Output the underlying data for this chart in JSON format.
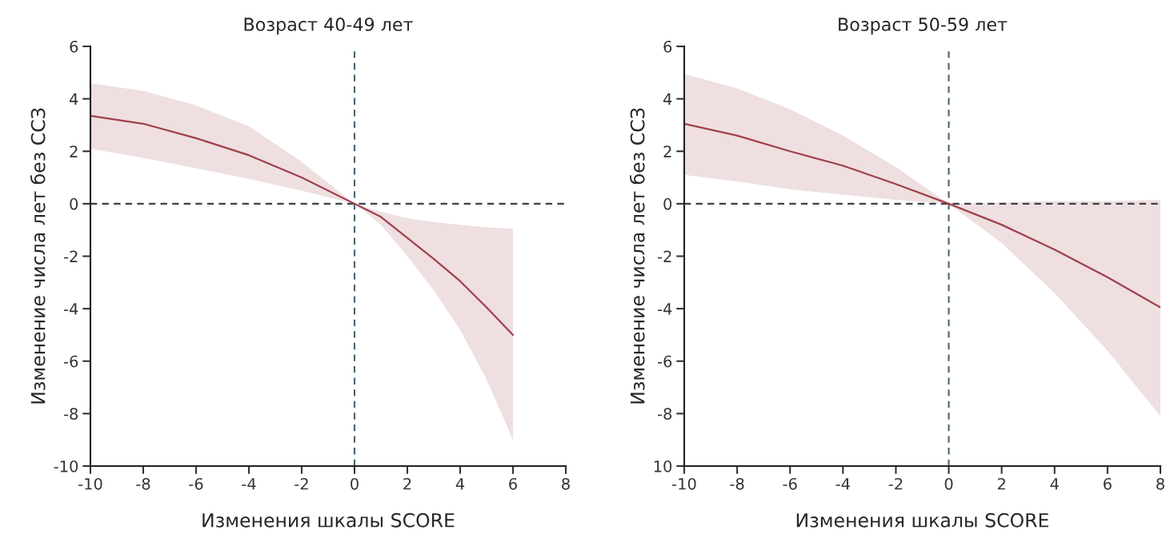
{
  "chart_data": [
    {
      "type": "line",
      "title": "Возраст 40-49 лет",
      "xlabel": "Изменения шкалы SCORE",
      "ylabel": "Изменение числа лет без ССЗ",
      "xlim": [
        -10,
        8
      ],
      "xticks": [
        -10,
        -8,
        -6,
        -4,
        -2,
        0,
        2,
        4,
        6,
        8
      ],
      "ylim": [
        -10,
        6
      ],
      "yticks": [
        -10,
        -8,
        -6,
        -4,
        -2,
        0,
        2,
        4,
        6
      ],
      "grid": false,
      "line_style": "solid",
      "series": [
        {
          "color": "#a0404a",
          "x": [
            -10,
            -8,
            -6,
            -4,
            -2,
            0,
            1,
            2,
            3,
            4,
            5,
            6
          ],
          "values": [
            3.35,
            3.05,
            2.5,
            1.85,
            1.0,
            0,
            -0.5,
            -1.3,
            -2.1,
            -2.95,
            -3.95,
            -5.0
          ],
          "lower": [
            2.1,
            1.75,
            1.35,
            0.95,
            0.5,
            0,
            -0.8,
            -2.0,
            -3.3,
            -4.8,
            -6.7,
            -9.0
          ],
          "upper": [
            4.6,
            4.3,
            3.75,
            2.95,
            1.6,
            0,
            -0.3,
            -0.55,
            -0.7,
            -0.8,
            -0.9,
            -0.95
          ]
        }
      ],
      "ref_lines": [
        {
          "axis": "y",
          "value": 0,
          "color": "#3a4248",
          "line_style": "dashed"
        },
        {
          "axis": "x",
          "value": 0,
          "color": "#4a6470",
          "line_style": "dashed"
        }
      ]
    },
    {
      "type": "line",
      "title": "Возраст 50-59 лет",
      "xlabel": "Изменения шкалы SCORE",
      "ylabel": "Изменение числа лет без ССЗ",
      "xlim": [
        -10,
        8
      ],
      "xticks": [
        -10,
        -8,
        -6,
        -4,
        -2,
        0,
        2,
        4,
        6,
        8
      ],
      "ylim": [
        -10,
        6
      ],
      "yticks": [
        {
          "value": -10,
          "label": "10"
        },
        -8,
        -6,
        -4,
        -2,
        0,
        2,
        4,
        6
      ],
      "grid": false,
      "line_style": "solid",
      "series": [
        {
          "color": "#a0404a",
          "x": [
            -10,
            -8,
            -6,
            -4,
            -2,
            0,
            2,
            4,
            6,
            8
          ],
          "values": [
            3.05,
            2.6,
            2.0,
            1.45,
            0.75,
            0,
            -0.8,
            -1.75,
            -2.8,
            -3.95
          ],
          "lower": [
            1.1,
            0.85,
            0.55,
            0.35,
            0.15,
            0,
            -1.5,
            -3.4,
            -5.6,
            -8.1
          ],
          "upper": [
            4.95,
            4.4,
            3.6,
            2.6,
            1.4,
            0,
            0.05,
            0.1,
            0.1,
            0.15
          ]
        }
      ],
      "ref_lines": [
        {
          "axis": "y",
          "value": 0,
          "color": "#3a4248",
          "line_style": "dashed"
        },
        {
          "axis": "x",
          "value": 0,
          "color": "#4a6470",
          "line_style": "dashed"
        }
      ]
    }
  ]
}
